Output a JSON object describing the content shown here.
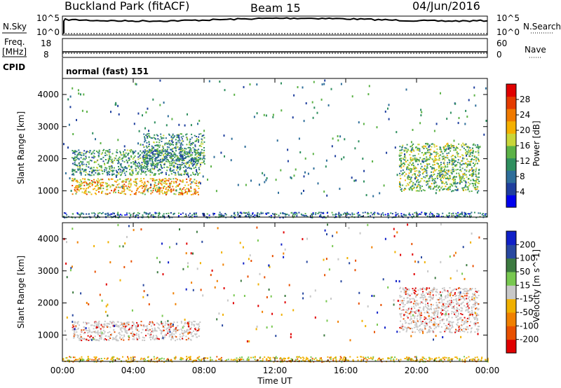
{
  "header": {
    "site": "Buckland Park (fitACF)",
    "beam": "Beam 15",
    "date": "04/Jun/2016"
  },
  "status_panels": {
    "nsky_label": "N.Sky",
    "nsky_ticks": [
      "10^5",
      "10^0"
    ],
    "nsearch_label": "N.Search",
    "nsearch_ticks": [
      "10^5",
      "10^0"
    ],
    "freq_label": "Freq.",
    "freq_unit": "[MHz]",
    "freq_ticks": [
      "18",
      "8"
    ],
    "nave_label": "Nave",
    "nave_ticks": [
      "60",
      "0"
    ],
    "cpid_label": "CPID",
    "cpid_text": "normal (fast) 151"
  },
  "colors": {
    "power_scale": [
      "#0000ee",
      "#1f3f9e",
      "#2e6e9a",
      "#2f8f5f",
      "#5cb247",
      "#c9d63a",
      "#f5b000",
      "#f07a00",
      "#e43b00",
      "#e00000"
    ],
    "velocity_scale": [
      "#1020c8",
      "#2848a0",
      "#3c7a40",
      "#78c850",
      "#c8c8c8",
      "#f0b000",
      "#f08000",
      "#e85000",
      "#e00000"
    ]
  },
  "chart_data": [
    {
      "type": "heatmap",
      "name": "power",
      "xlabel": "",
      "ylabel": "Slant Range [km]",
      "xlim": [
        "00:00",
        "24:00"
      ],
      "ylim": [
        180,
        4500
      ],
      "yticks": [
        1000,
        2000,
        3000,
        4000
      ],
      "colorbar": {
        "label": "Power [dB]",
        "range": [
          0,
          32
        ],
        "ticks": [
          "4",
          "8",
          "12",
          "16",
          "20",
          "24",
          "28"
        ]
      },
      "echo_regions": [
        {
          "t_start": "00:30",
          "t_end": "07:45",
          "range_min": 900,
          "range_max": 1400,
          "power": 22
        },
        {
          "t_start": "00:30",
          "t_end": "07:45",
          "range_min": 1500,
          "range_max": 2300,
          "power": 12
        },
        {
          "t_start": "04:30",
          "t_end": "08:00",
          "range_min": 1800,
          "range_max": 2800,
          "power": 12
        },
        {
          "t_start": "19:00",
          "t_end": "23:30",
          "range_min": 1000,
          "range_max": 2500,
          "power": 14
        },
        {
          "t_start": "00:00",
          "t_end": "24:00",
          "range_min": 180,
          "range_max": 350,
          "power": 8
        }
      ]
    },
    {
      "type": "heatmap",
      "name": "velocity",
      "xlabel": "Time UT",
      "ylabel": "Slant Range [km]",
      "xlim": [
        "00:00",
        "24:00"
      ],
      "ylim": [
        180,
        4500
      ],
      "xticks": [
        "00:00",
        "04:00",
        "08:00",
        "12:00",
        "16:00",
        "20:00",
        "00:00"
      ],
      "yticks": [
        1000,
        2000,
        3000,
        4000
      ],
      "colorbar": {
        "label": "Velocity [m s^-1]",
        "range": [
          -250,
          250
        ],
        "ticks": [
          "200",
          "100",
          "50",
          "15",
          "-15",
          "-50",
          "-100",
          "-200"
        ]
      },
      "echo_regions": [
        {
          "t_start": "00:30",
          "t_end": "07:45",
          "range_min": 850,
          "range_max": 1450,
          "velocity": 0
        },
        {
          "t_start": "19:00",
          "t_end": "23:30",
          "range_min": 1100,
          "range_max": 2500,
          "velocity": 0
        },
        {
          "t_start": "00:00",
          "t_end": "24:00",
          "range_min": 180,
          "range_max": 350,
          "velocity": -60
        }
      ]
    }
  ]
}
